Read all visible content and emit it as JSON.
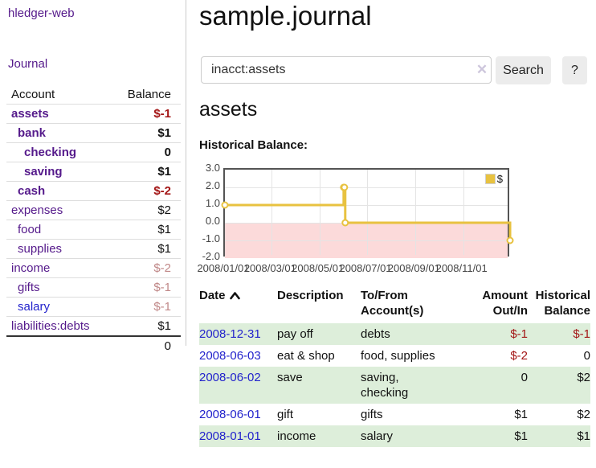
{
  "app": {
    "brand": "hledger-web",
    "nav_journal": "Journal"
  },
  "sidebar": {
    "headers": {
      "account": "Account",
      "balance": "Balance"
    },
    "accounts": [
      {
        "name": "assets",
        "balance": "$-1",
        "indent": 0
      },
      {
        "name": "bank",
        "balance": "$1",
        "indent": 1
      },
      {
        "name": "checking",
        "balance": "0",
        "indent": 2
      },
      {
        "name": "saving",
        "balance": "$1",
        "indent": 2
      },
      {
        "name": "cash",
        "balance": "$-2",
        "indent": 1
      },
      {
        "name": "expenses",
        "balance": "$2",
        "indent": 0
      },
      {
        "name": "food",
        "balance": "$1",
        "indent": 1
      },
      {
        "name": "supplies",
        "balance": "$1",
        "indent": 1
      },
      {
        "name": "income",
        "balance": "$-2",
        "indent": 0
      },
      {
        "name": "gifts",
        "balance": "$-1",
        "indent": 1
      },
      {
        "name": "salary",
        "balance": "$-1",
        "indent": 1
      },
      {
        "name": "liabilities:debts",
        "balance": "$1",
        "indent": 0
      }
    ],
    "total": "0"
  },
  "header": {
    "title": "sample.journal"
  },
  "search": {
    "value": "inacct:assets",
    "clear_icon": "✕",
    "button_label": "Search",
    "help_label": "?"
  },
  "account_page": {
    "title": "assets",
    "chart_label": "Historical Balance:"
  },
  "chart_data": {
    "type": "line",
    "step": true,
    "title": "Historical Balance of assets",
    "series": [
      {
        "name": "$",
        "color": "#e8c240",
        "points": [
          [
            "2008-01-01",
            1
          ],
          [
            "2008-06-01",
            2
          ],
          [
            "2008-06-02",
            2
          ],
          [
            "2008-06-03",
            0
          ],
          [
            "2008-12-31",
            -1
          ]
        ]
      }
    ],
    "xlim": [
      "2008-01-01",
      "2009-01-01"
    ],
    "ylim": [
      -2,
      3
    ],
    "x_ticks": [
      "2008/01/01",
      "2008/03/01",
      "2008/05/01",
      "2008/07/01",
      "2008/09/01",
      "2008/11/01"
    ],
    "y_ticks": [
      "3.0",
      "2.0",
      "1.0",
      "0.0",
      "-1.0",
      "-2.0"
    ],
    "grid": true,
    "legend": {
      "label": "$",
      "position": "top-right"
    },
    "negative_region": {
      "fill": "#fcdada",
      "zero_line": "#a00000"
    }
  },
  "register": {
    "columns": [
      {
        "l1": "Date",
        "l2": "",
        "sorted": "ascending"
      },
      {
        "l1": "Description",
        "l2": ""
      },
      {
        "l1": "To/From",
        "l2": "Account(s)"
      },
      {
        "l1": "Amount",
        "l2": "Out/In"
      },
      {
        "l1": "Historical",
        "l2": "Balance"
      }
    ],
    "rows": [
      {
        "date": "2008-12-31",
        "description": "pay off",
        "accounts": "debts",
        "amount": "$-1",
        "balance": "$-1"
      },
      {
        "date": "2008-06-03",
        "description": "eat & shop",
        "accounts": "food, supplies",
        "amount": "$-2",
        "balance": "0"
      },
      {
        "date": "2008-06-02",
        "description": "save",
        "accounts": "saving,\nchecking",
        "amount": "0",
        "balance": "$2"
      },
      {
        "date": "2008-06-01",
        "description": "gift",
        "accounts": "gifts",
        "amount": "$1",
        "balance": "$2"
      },
      {
        "date": "2008-01-01",
        "description": "income",
        "accounts": "salary",
        "amount": "$1",
        "balance": "$1"
      }
    ]
  },
  "colors": {
    "link_visited_purple": "#551a8b",
    "link_blue": "#2323cc",
    "negative_red": "#a31515",
    "negative_faded": "#c08888",
    "row_green": "#ddeeda",
    "series_gold": "#e8c240",
    "negative_region_pink": "#fcdada",
    "zero_line_red": "#a00000"
  }
}
